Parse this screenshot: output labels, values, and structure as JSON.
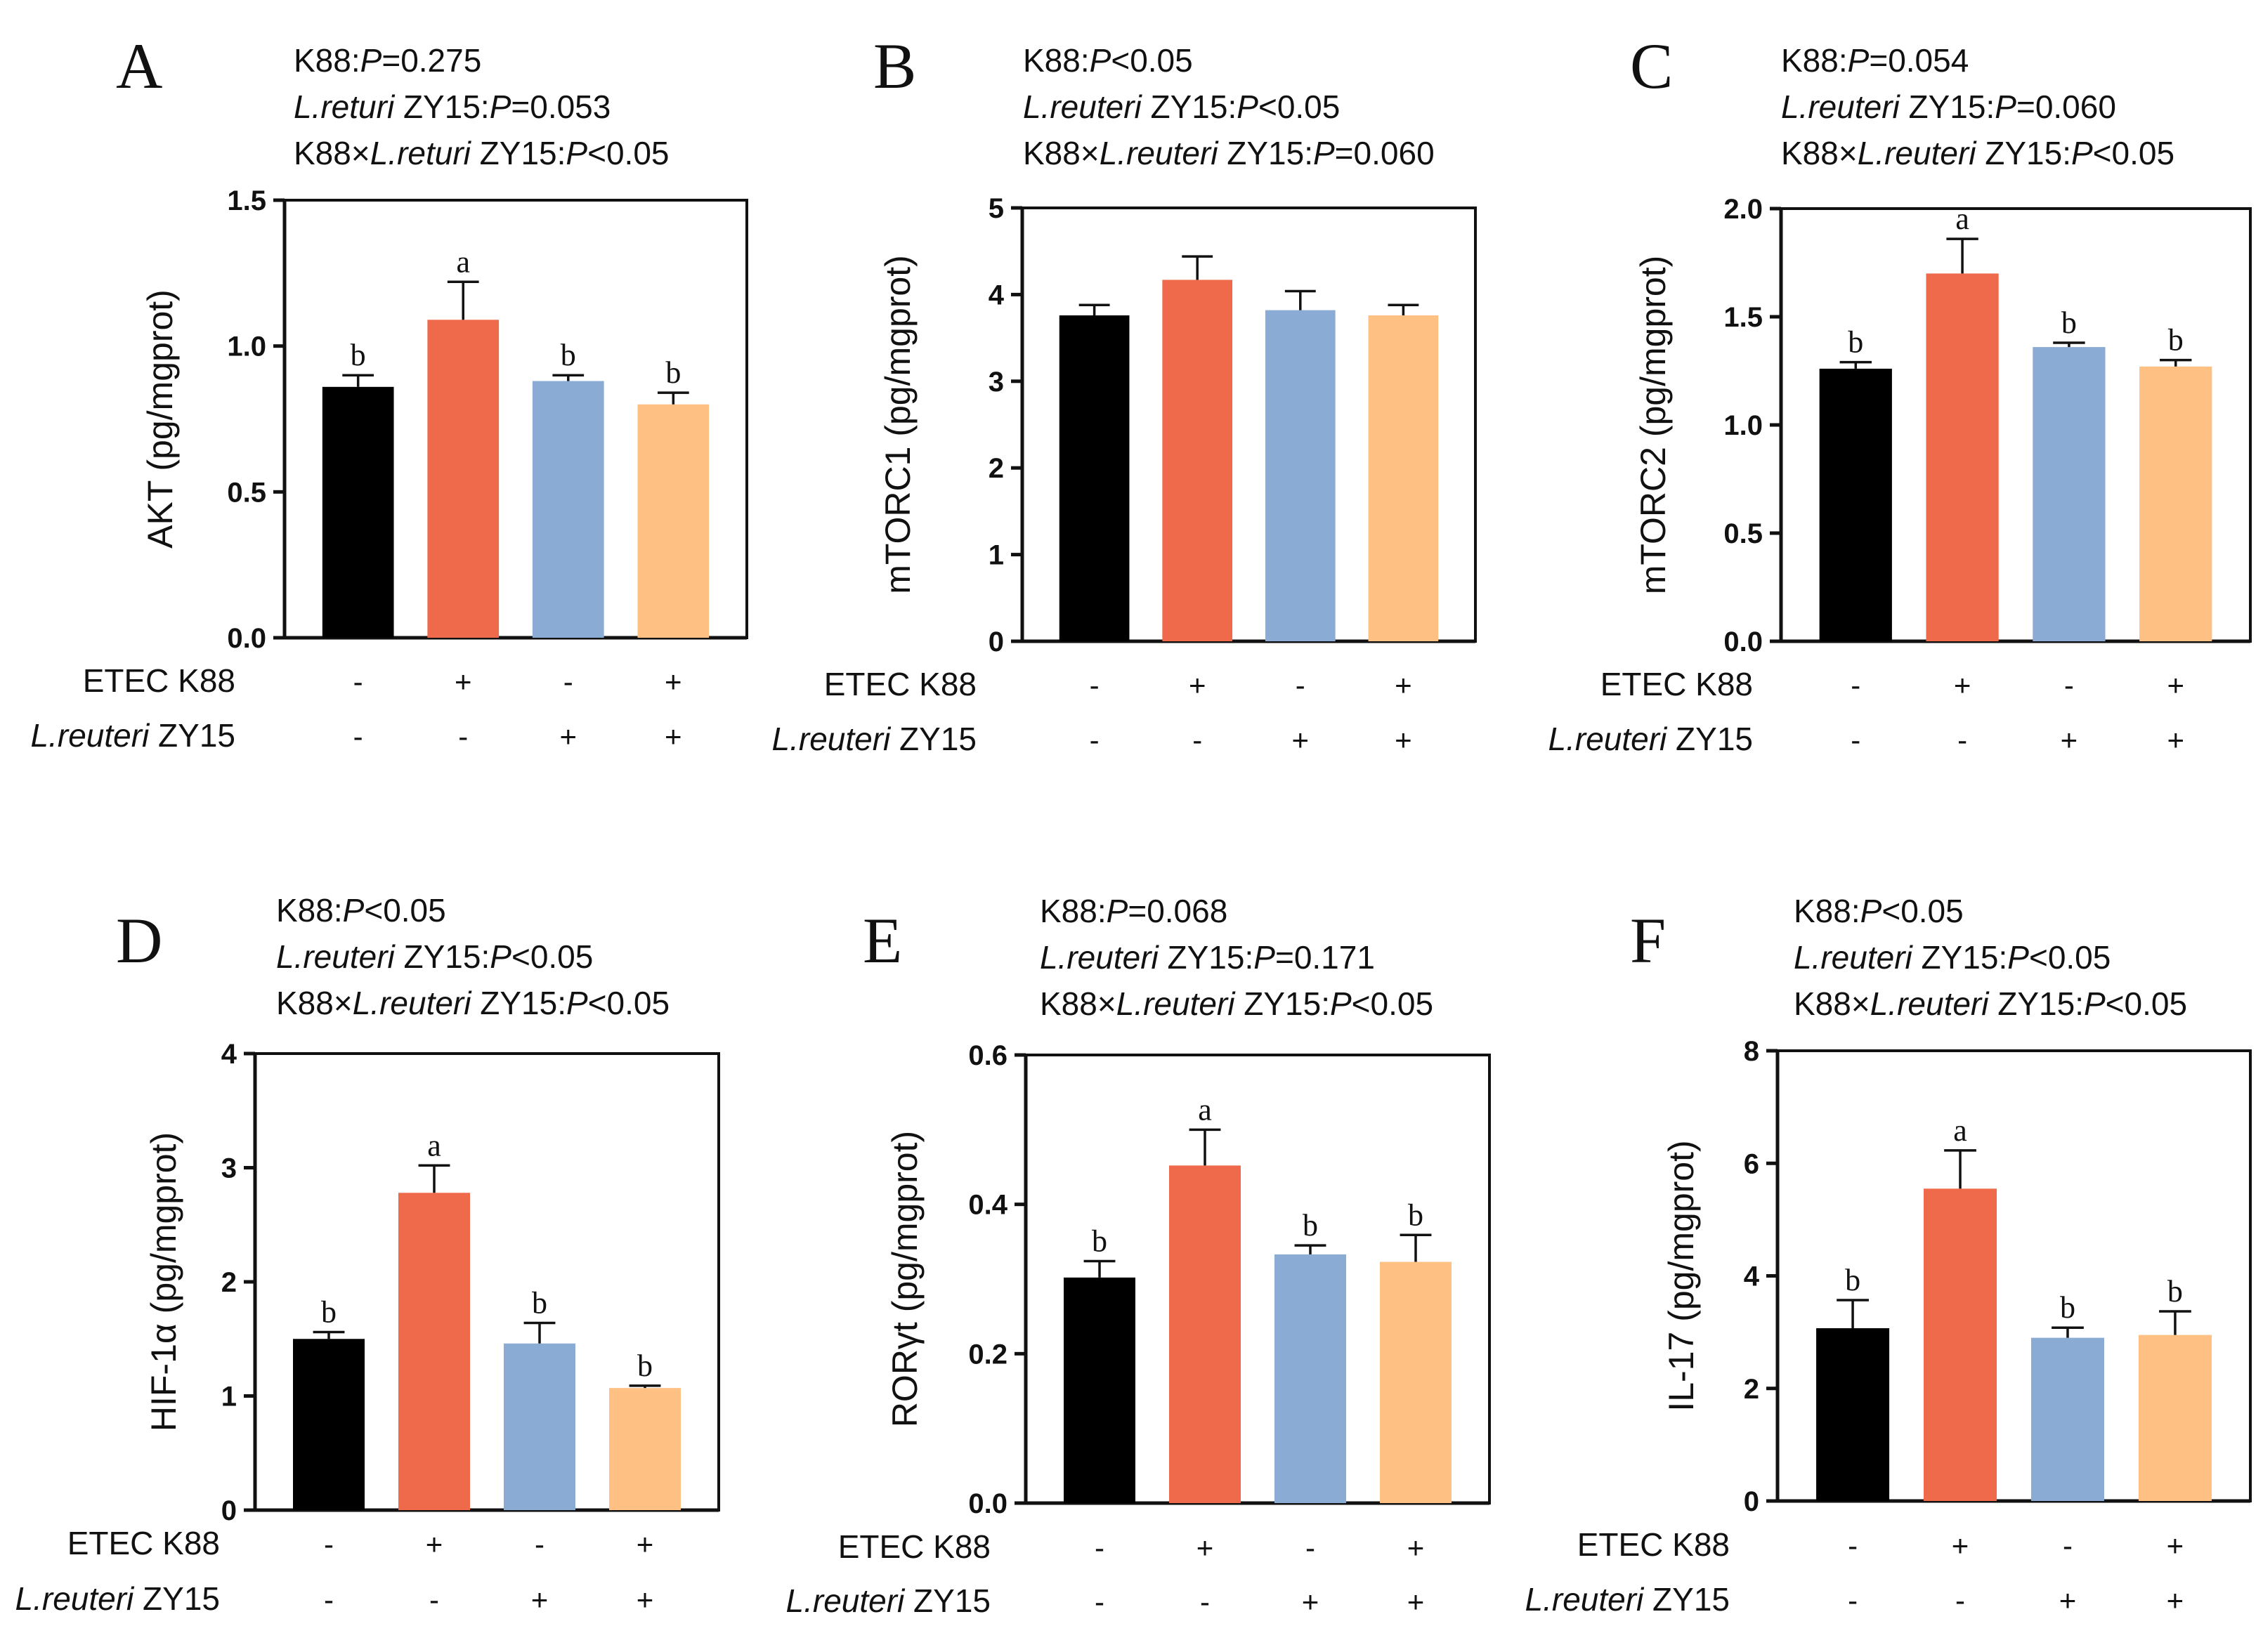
{
  "group_colors": [
    "#000000",
    "#EE6A4B",
    "#8AABD3",
    "#FFC084"
  ],
  "row_labels": {
    "etec": "ETEC K88",
    "lr_italic": "L.reuteri",
    "lr_rest": " ZY15"
  },
  "chart_data": [
    {
      "type": "bar",
      "panel": "A",
      "ylabel": "AKT (pg/mgprot)",
      "ylim": [
        0,
        1.5
      ],
      "yticks": [
        "0.0",
        "0.5",
        "1.0",
        "1.5"
      ],
      "stats": [
        [
          {
            "t": "K88:"
          },
          {
            "t": "P",
            "i": true
          },
          {
            "t": "=0.275"
          }
        ],
        [
          {
            "t": "L.returi",
            "i": true
          },
          {
            "t": " ZY15:"
          },
          {
            "t": "P",
            "i": true
          },
          {
            "t": "=0.053"
          }
        ],
        [
          {
            "t": "K88×"
          },
          {
            "t": "L.returi",
            "i": true
          },
          {
            "t": " ZY15:"
          },
          {
            "t": "P",
            "i": true
          },
          {
            "t": "<0.05"
          }
        ]
      ],
      "values": [
        0.86,
        1.09,
        0.88,
        0.8
      ],
      "errors": [
        0.04,
        0.13,
        0.02,
        0.04
      ],
      "significance": [
        "b",
        "a",
        "b",
        "b"
      ],
      "etec_k88": [
        "-",
        "+",
        "-",
        "+"
      ],
      "l_reuteri_zy15": [
        "-",
        "-",
        "+",
        "+"
      ]
    },
    {
      "type": "bar",
      "panel": "B",
      "ylabel": "mTORC1 (pg/mgprot)",
      "ylim": [
        0,
        5
      ],
      "yticks": [
        "0",
        "1",
        "2",
        "3",
        "4",
        "5"
      ],
      "stats": [
        [
          {
            "t": "K88:"
          },
          {
            "t": "P",
            "i": true
          },
          {
            "t": "<0.05"
          }
        ],
        [
          {
            "t": "L.reuteri",
            "i": true
          },
          {
            "t": " ZY15:"
          },
          {
            "t": "P",
            "i": true
          },
          {
            "t": "<0.05"
          }
        ],
        [
          {
            "t": "K88×"
          },
          {
            "t": "L.reuteri",
            "i": true
          },
          {
            "t": " ZY15:"
          },
          {
            "t": "P",
            "i": true
          },
          {
            "t": "=0.060"
          }
        ]
      ],
      "values": [
        3.76,
        4.17,
        3.82,
        3.76
      ],
      "errors": [
        0.12,
        0.27,
        0.22,
        0.12
      ],
      "significance": [
        "",
        "",
        "",
        ""
      ],
      "etec_k88": [
        "-",
        "+",
        "-",
        "+"
      ],
      "l_reuteri_zy15": [
        "-",
        "-",
        "+",
        "+"
      ]
    },
    {
      "type": "bar",
      "panel": "C",
      "ylabel": "mTORC2 (pg/mgprot)",
      "ylim": [
        0,
        2.0
      ],
      "yticks": [
        "0.0",
        "0.5",
        "1.0",
        "1.5",
        "2.0"
      ],
      "stats": [
        [
          {
            "t": "K88:"
          },
          {
            "t": "P",
            "i": true
          },
          {
            "t": "=0.054"
          }
        ],
        [
          {
            "t": "L.reuteri",
            "i": true
          },
          {
            "t": " ZY15:"
          },
          {
            "t": "P",
            "i": true
          },
          {
            "t": "=0.060"
          }
        ],
        [
          {
            "t": "K88×"
          },
          {
            "t": "L.reuteri",
            "i": true
          },
          {
            "t": " ZY15:"
          },
          {
            "t": "P",
            "i": true
          },
          {
            "t": "<0.05"
          }
        ]
      ],
      "values": [
        1.26,
        1.7,
        1.36,
        1.27
      ],
      "errors": [
        0.03,
        0.16,
        0.02,
        0.03
      ],
      "significance": [
        "b",
        "a",
        "b",
        "b"
      ],
      "etec_k88": [
        "-",
        "+",
        "-",
        "+"
      ],
      "l_reuteri_zy15": [
        "-",
        "-",
        "+",
        "+"
      ]
    },
    {
      "type": "bar",
      "panel": "D",
      "ylabel": "HIF-1α (pg/mgprot)",
      "ylim": [
        0,
        4
      ],
      "yticks": [
        "0",
        "1",
        "2",
        "3",
        "4"
      ],
      "stats": [
        [
          {
            "t": "K88:"
          },
          {
            "t": "P",
            "i": true
          },
          {
            "t": "<0.05"
          }
        ],
        [
          {
            "t": "L.reuteri",
            "i": true
          },
          {
            "t": " ZY15:"
          },
          {
            "t": "P",
            "i": true
          },
          {
            "t": "<0.05"
          }
        ],
        [
          {
            "t": "K88×"
          },
          {
            "t": "L.reuteri",
            "i": true
          },
          {
            "t": " ZY15:"
          },
          {
            "t": "P",
            "i": true
          },
          {
            "t": "<0.05"
          }
        ]
      ],
      "values": [
        1.5,
        2.78,
        1.46,
        1.07
      ],
      "errors": [
        0.06,
        0.24,
        0.18,
        0.02
      ],
      "significance": [
        "b",
        "a",
        "b",
        "b"
      ],
      "etec_k88": [
        "-",
        "+",
        "-",
        "+"
      ],
      "l_reuteri_zy15": [
        "-",
        "-",
        "+",
        "+"
      ]
    },
    {
      "type": "bar",
      "panel": "E",
      "ylabel": "RORγt (pg/mgprot)",
      "ylim": [
        0,
        0.6
      ],
      "yticks": [
        "0.0",
        "0.2",
        "0.4",
        "0.6"
      ],
      "stats": [
        [
          {
            "t": "K88:"
          },
          {
            "t": "P",
            "i": true
          },
          {
            "t": "=0.068"
          }
        ],
        [
          {
            "t": "L.reuteri",
            "i": true
          },
          {
            "t": " ZY15:"
          },
          {
            "t": "P",
            "i": true
          },
          {
            "t": "=0.171"
          }
        ],
        [
          {
            "t": "K88×"
          },
          {
            "t": "L.reuteri",
            "i": true
          },
          {
            "t": " ZY15:"
          },
          {
            "t": "P",
            "i": true
          },
          {
            "t": "<0.05"
          }
        ]
      ],
      "values": [
        0.302,
        0.452,
        0.333,
        0.323
      ],
      "errors": [
        0.022,
        0.048,
        0.012,
        0.036
      ],
      "significance": [
        "b",
        "a",
        "b",
        "b"
      ],
      "etec_k88": [
        "-",
        "+",
        "-",
        "+"
      ],
      "l_reuteri_zy15": [
        "-",
        "-",
        "+",
        "+"
      ]
    },
    {
      "type": "bar",
      "panel": "F",
      "ylabel": "IL-17 (pg/mgprot)",
      "ylim": [
        0,
        8
      ],
      "yticks": [
        "0",
        "2",
        "4",
        "6",
        "8"
      ],
      "stats": [
        [
          {
            "t": "K88:"
          },
          {
            "t": "P",
            "i": true
          },
          {
            "t": "<0.05"
          }
        ],
        [
          {
            "t": "L.reuteri",
            "i": true
          },
          {
            "t": " ZY15:"
          },
          {
            "t": "P",
            "i": true
          },
          {
            "t": "<0.05"
          }
        ],
        [
          {
            "t": "K88×"
          },
          {
            "t": "L.reuteri",
            "i": true
          },
          {
            "t": " ZY15:"
          },
          {
            "t": "P",
            "i": true
          },
          {
            "t": "<0.05"
          }
        ]
      ],
      "values": [
        3.07,
        5.55,
        2.9,
        2.95
      ],
      "errors": [
        0.5,
        0.68,
        0.18,
        0.42
      ],
      "significance": [
        "b",
        "a",
        "b",
        "b"
      ],
      "etec_k88": [
        "-",
        "+",
        "-",
        "+"
      ],
      "l_reuteri_zy15": [
        "-",
        "-",
        "+",
        "+"
      ]
    }
  ]
}
